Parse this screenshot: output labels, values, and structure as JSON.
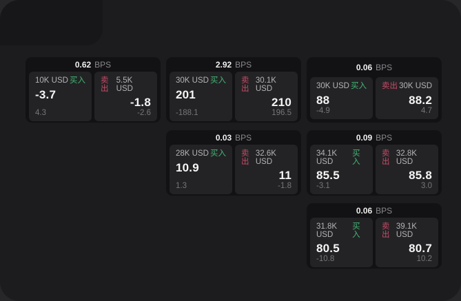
{
  "labels": {
    "bps_suffix": "BPS",
    "buy": "买入",
    "sell": "卖出"
  },
  "colors": {
    "outer_background": "#27272a",
    "screen_background": "#1c1c1e",
    "card_background": "#121214",
    "panel_background": "#232325",
    "buy_accent": "#43b774",
    "sell_accent": "#c94b68"
  },
  "cards": [
    {
      "bps": "0.62",
      "buy": {
        "size": "10K USD",
        "price": "-3.7",
        "delta": "4.3"
      },
      "sell": {
        "size": "5.5K USD",
        "price": "-1.8",
        "delta": "-2.6"
      }
    },
    {
      "bps": "2.92",
      "buy": {
        "size": "30K USD",
        "price": "201",
        "delta": "-188.1"
      },
      "sell": {
        "size": "30.1K USD",
        "price": "210",
        "delta": "196.5"
      }
    },
    {
      "bps": "0.06",
      "buy": {
        "size": "30K USD",
        "price": "88",
        "delta": "-4.9"
      },
      "sell": {
        "size": "30K USD",
        "price": "88.2",
        "delta": "4.7"
      }
    },
    {
      "bps": "0.03",
      "buy": {
        "size": "28K USD",
        "price": "10.9",
        "delta": "1.3"
      },
      "sell": {
        "size": "32.6K USD",
        "price": "11",
        "delta": "-1.8"
      }
    },
    {
      "bps": "0.09",
      "buy": {
        "size": "34.1K USD",
        "price": "85.5",
        "delta": "-3.1"
      },
      "sell": {
        "size": "32.8K USD",
        "price": "85.8",
        "delta": "3.0"
      }
    },
    {
      "bps": "0.06",
      "buy": {
        "size": "31.8K USD",
        "price": "80.5",
        "delta": "-10.8"
      },
      "sell": {
        "size": "39.1K USD",
        "price": "80.7",
        "delta": "10.2"
      }
    }
  ]
}
